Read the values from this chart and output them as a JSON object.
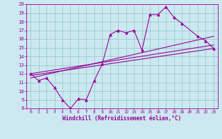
{
  "xlabel": "Windchill (Refroidissement éolien,°C)",
  "bg_color": "#cce8f0",
  "line_color": "#990099",
  "grid_color": "#99cccc",
  "xlim": [
    -0.5,
    23.5
  ],
  "ylim": [
    8,
    20
  ],
  "xticks": [
    0,
    1,
    2,
    3,
    4,
    5,
    6,
    7,
    8,
    9,
    10,
    11,
    12,
    13,
    14,
    15,
    16,
    17,
    18,
    19,
    20,
    21,
    22,
    23
  ],
  "yticks": [
    8,
    9,
    10,
    11,
    12,
    13,
    14,
    15,
    16,
    17,
    18,
    19,
    20
  ],
  "line1_x": [
    0,
    1,
    2,
    3,
    4,
    5,
    6,
    7,
    8,
    9,
    10,
    11,
    12,
    13,
    14,
    15,
    16,
    17,
    18,
    19,
    21,
    22,
    23
  ],
  "line1_y": [
    12.0,
    11.2,
    11.5,
    10.4,
    9.0,
    8.0,
    9.1,
    9.0,
    11.2,
    13.1,
    16.5,
    17.0,
    16.7,
    17.0,
    14.7,
    18.8,
    18.8,
    19.7,
    18.5,
    17.8,
    16.3,
    15.8,
    14.9
  ],
  "line2_x": [
    0,
    23
  ],
  "line2_y": [
    11.8,
    14.9
  ],
  "line3_x": [
    0,
    23
  ],
  "line3_y": [
    12.0,
    15.3
  ],
  "line4_x": [
    0,
    23
  ],
  "line4_y": [
    11.5,
    16.3
  ]
}
